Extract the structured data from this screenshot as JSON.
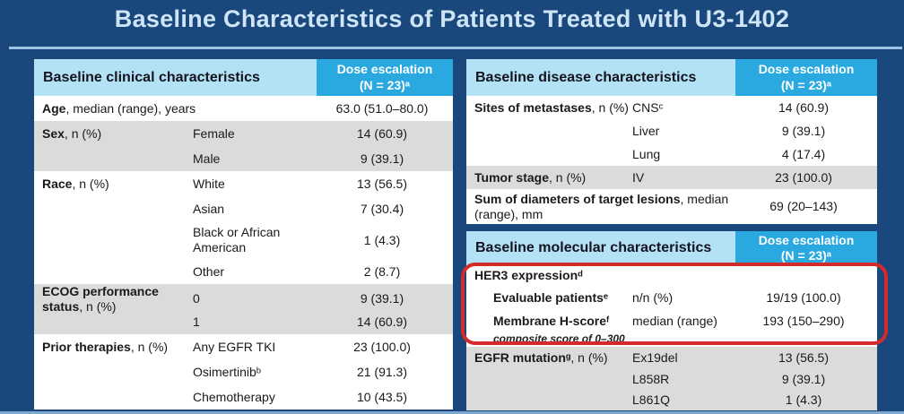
{
  "slide": {
    "title": "Baseline Characteristics of Patients Treated with U3-1402",
    "colors": {
      "background": "#1A477C",
      "title_text": "#CDE5F6",
      "underline": "#9DC3E6",
      "header_light_blue": "#B3E1F5",
      "header_bright_blue": "#29A9E0",
      "row_gray": "#DBDBD9",
      "row_white": "#FFFFFF",
      "body_text": "#1A1A1A",
      "annotation_red": "#D32B2B"
    }
  },
  "tables": {
    "clinical": {
      "title": "Baseline clinical characteristics",
      "dose_header": "Dose escalation",
      "dose_subheader": "(N = 23)ᵃ",
      "rows": [
        {
          "label": "Age",
          "suffix": ", median (range), years",
          "sub": "",
          "value": "63.0 (51.0–80.0)",
          "shade": "w",
          "h": 28
        },
        {
          "label": "Sex",
          "suffix": ", n (%)",
          "sub": "Female",
          "value": "14 (60.9)",
          "shade": "g",
          "h": 28
        },
        {
          "label": "",
          "suffix": "",
          "sub": "Male",
          "value": "9 (39.1)",
          "shade": "g",
          "h": 28
        },
        {
          "label": "Race",
          "suffix": ", n (%)",
          "sub": "White",
          "value": "13 (56.5)",
          "shade": "w",
          "h": 28
        },
        {
          "label": "",
          "suffix": "",
          "sub": "Asian",
          "value": "7 (30.4)",
          "shade": "w",
          "h": 28
        },
        {
          "label": "",
          "suffix": "",
          "sub": "Black or African American",
          "value": "1 (4.3)",
          "shade": "w",
          "h": 42
        },
        {
          "label": "",
          "suffix": "",
          "sub": "Other",
          "value": "2 (8.7)",
          "shade": "w",
          "h": 28
        },
        {
          "label": "ECOG performance status",
          "suffix": ", n (%)",
          "sub": "0",
          "value": "9 (39.1)",
          "shade": "g",
          "h": 28
        },
        {
          "label": "",
          "suffix": "",
          "sub": "1",
          "value": "14 (60.9)",
          "shade": "g",
          "h": 28
        },
        {
          "label": "Prior therapies",
          "suffix": ", n (%)",
          "sub": "Any EGFR TKI",
          "value": "23 (100.0)",
          "shade": "w",
          "h": 28
        },
        {
          "label": "",
          "suffix": "",
          "sub": "Osimertinibᵇ",
          "value": "21 (91.3)",
          "shade": "w",
          "h": 28
        },
        {
          "label": "",
          "suffix": "",
          "sub": "Chemotherapy",
          "value": "10 (43.5)",
          "shade": "w",
          "h": 28
        }
      ]
    },
    "disease": {
      "title": "Baseline disease characteristics",
      "dose_header": "Dose escalation",
      "dose_subheader": "(N = 23)ᵃ",
      "rows": [
        {
          "label": "Sites of metastases",
          "suffix": ", n (%)",
          "sub": "CNSᶜ",
          "value": "14 (60.9)",
          "shade": "w",
          "h": 26
        },
        {
          "label": "",
          "suffix": "",
          "sub": "Liver",
          "value": "9 (39.1)",
          "shade": "w",
          "h": 26
        },
        {
          "label": "",
          "suffix": "",
          "sub": "Lung",
          "value": "4 (17.4)",
          "shade": "w",
          "h": 26
        },
        {
          "label": "Tumor stage",
          "suffix": ", n (%)",
          "sub": "IV",
          "value": "23 (100.0)",
          "shade": "g",
          "h": 26
        },
        {
          "label": "Sum of diameters of target lesions",
          "suffix": ", median (range), mm",
          "sub": "",
          "value": "69 (20–143)",
          "shade": "w",
          "h": 39
        }
      ]
    },
    "molecular": {
      "title": "Baseline molecular characteristics",
      "dose_header": "Dose escalation",
      "dose_subheader": "(N = 23)ᵃ",
      "rows": [
        {
          "label": "HER3 expressionᵈ",
          "suffix": "",
          "sub": "",
          "value": "",
          "shade": "w",
          "h": 23,
          "type": "title"
        },
        {
          "label": "Evaluable patientsᵉ",
          "suffix": "",
          "sub": "n/n (%)",
          "value": "19/19 (100.0)",
          "shade": "w",
          "h": 27,
          "indent": true
        },
        {
          "label": "Membrane H-scoreᶠ",
          "suffix": "",
          "sub": "median (range)",
          "value": "193 (150–290)",
          "shade": "w",
          "h": 24,
          "indent": true
        },
        {
          "label": "composite score of 0–300",
          "suffix": "",
          "sub": "",
          "value": "",
          "shade": "w",
          "h": 17,
          "type": "note",
          "indent": true
        },
        {
          "label": "EGFR mutationᵍ",
          "suffix": ", n (%)",
          "sub": "Ex19del",
          "value": "13 (56.5)",
          "shade": "g",
          "h": 24
        },
        {
          "label": "",
          "suffix": "",
          "sub": "L858R",
          "value": "9 (39.1)",
          "shade": "g",
          "h": 24
        },
        {
          "label": "",
          "suffix": "",
          "sub": "L861Q",
          "value": "1 (4.3)",
          "shade": "g",
          "h": 23
        }
      ]
    }
  },
  "annotation": {
    "shape": "rounded-rectangle-outline",
    "color": "#D32B2B",
    "highlights": "HER3 expression section (Evaluable patients, Membrane H-score)"
  }
}
